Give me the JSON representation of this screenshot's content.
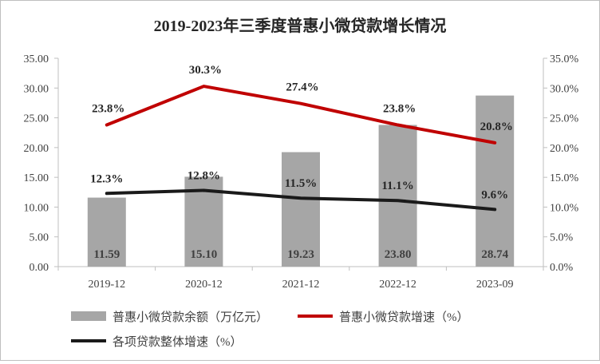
{
  "chart_data": {
    "type": "bar",
    "title": "2019-2023年三季度普惠小微贷款增长情况",
    "categories": [
      "2019-12",
      "2020-12",
      "2021-12",
      "2022-12",
      "2023-09"
    ],
    "y_left": {
      "ylim": [
        0,
        35
      ],
      "ticks": [
        "0.00",
        "5.00",
        "10.00",
        "15.00",
        "20.00",
        "25.00",
        "30.00",
        "35.00"
      ]
    },
    "y_right": {
      "ylim": [
        0,
        35
      ],
      "ticks": [
        "0.0%",
        "5.0%",
        "10.0%",
        "15.0%",
        "20.0%",
        "25.0%",
        "30.0%",
        "35.0%"
      ]
    },
    "series": [
      {
        "name": "普惠小微贷款余额（万亿元）",
        "kind": "bar",
        "axis": "left",
        "color": "#a6a6a6",
        "values": [
          11.59,
          15.1,
          19.23,
          23.8,
          28.74
        ],
        "labels": [
          "11.59",
          "15.10",
          "19.23",
          "23.80",
          "28.74"
        ]
      },
      {
        "name": "普惠小微贷款增速（%）",
        "kind": "line",
        "axis": "right",
        "color": "#c00000",
        "values": [
          23.8,
          30.3,
          27.4,
          23.8,
          20.8
        ],
        "labels": [
          "23.8%",
          "30.3%",
          "27.4%",
          "23.8%",
          "20.8%"
        ]
      },
      {
        "name": "各项贷款整体增速（%）",
        "kind": "line",
        "axis": "right",
        "color": "#1a1a1a",
        "values": [
          12.3,
          12.8,
          11.5,
          11.1,
          9.6
        ],
        "labels": [
          "12.3%",
          "12.8%",
          "11.5%",
          "11.1%",
          "9.6%"
        ]
      }
    ],
    "grid": false,
    "legend_position": "bottom"
  }
}
